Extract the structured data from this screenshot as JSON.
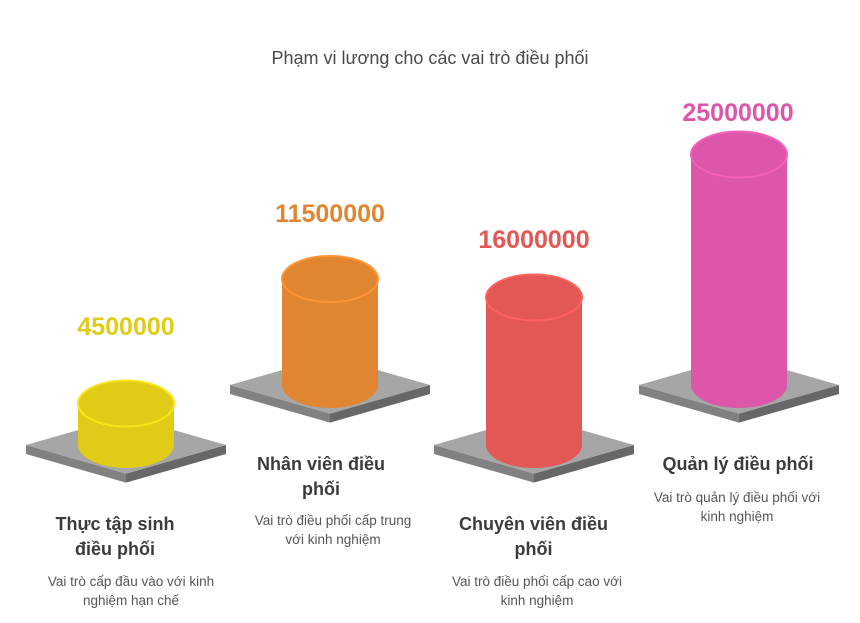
{
  "chart_data": {
    "type": "bar",
    "title": "Phạm vi lương cho các vai trò điều phối",
    "categories": [
      "Thực tập sinh điều phối",
      "Nhân viên điều phối",
      "Chuyên viên điều phối",
      "Quản lý điều phối"
    ],
    "values": [
      4500000,
      11500000,
      16000000,
      25000000
    ],
    "value_labels": [
      "4500000",
      "11500000",
      "16000000",
      "25000000"
    ],
    "descriptions": [
      "Vai trò cấp đầu vào với kinh nghiệm hạn chế",
      "Vai trò điều phối cấp trung với kinh nghiệm",
      "Vai trò điều phối cấp cao với kinh nghiệm",
      "Vai trò quản lý điều phối với kinh nghiệm"
    ],
    "colors": [
      "#e0cc16",
      "#e08530",
      "#e35754",
      "#dc56a9"
    ],
    "platform_color": "#a6a6a6"
  }
}
